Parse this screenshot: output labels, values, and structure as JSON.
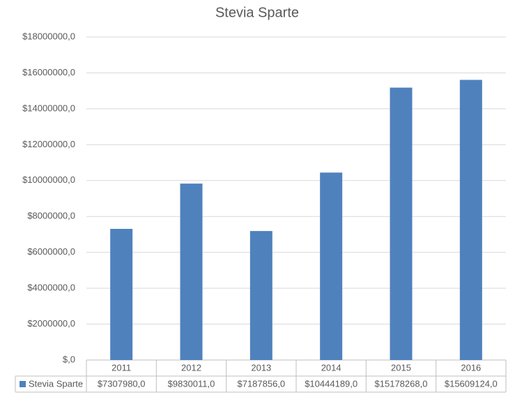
{
  "chart_data": {
    "type": "bar",
    "title": "Stevia Sparte",
    "categories": [
      "2011",
      "2012",
      "2013",
      "2014",
      "2015",
      "2016"
    ],
    "series": [
      {
        "name": "Stevia Sparte",
        "color": "#4f81bd",
        "values": [
          7307980,
          9830011,
          7187856,
          10444189,
          15178268,
          15609124
        ],
        "value_labels": [
          "$7307980,0",
          "$9830011,0",
          "$7187856,0",
          "$10444189,0",
          "$15178268,0",
          "$15609124,0"
        ]
      }
    ],
    "ylim": [
      0,
      18000000
    ],
    "yticks": [
      {
        "value": 0,
        "label": "$,0"
      },
      {
        "value": 2000000,
        "label": "$2000000,0"
      },
      {
        "value": 4000000,
        "label": "$4000000,0"
      },
      {
        "value": 6000000,
        "label": "$6000000,0"
      },
      {
        "value": 8000000,
        "label": "$8000000,0"
      },
      {
        "value": 10000000,
        "label": "$10000000,0"
      },
      {
        "value": 12000000,
        "label": "$12000000,0"
      },
      {
        "value": 14000000,
        "label": "$14000000,0"
      },
      {
        "value": 16000000,
        "label": "$16000000,0"
      },
      {
        "value": 18000000,
        "label": "$18000000,0"
      }
    ],
    "grid": true
  }
}
